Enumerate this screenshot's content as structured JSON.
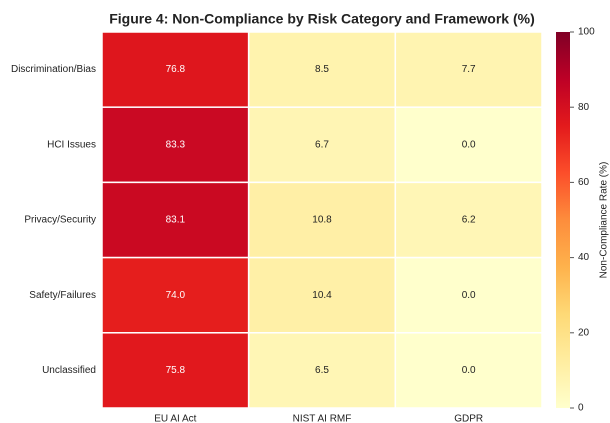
{
  "chart_data": {
    "type": "heatmap",
    "title": "Figure 4: Non-Compliance by Risk Category and Framework (%)",
    "x_categories": [
      "EU AI Act",
      "NIST AI RMF",
      "GDPR"
    ],
    "y_categories": [
      "Discrimination/Bias",
      "HCI Issues",
      "Privacy/Security",
      "Safety/Failures",
      "Unclassified"
    ],
    "values": [
      [
        76.8,
        8.5,
        7.7
      ],
      [
        83.3,
        6.7,
        0
      ],
      [
        83.1,
        10.8,
        6.2
      ],
      [
        74,
        10.4,
        0
      ],
      [
        75.8,
        6.5,
        0
      ]
    ],
    "value_labels": [
      [
        "76.8",
        "8.5",
        "7.7"
      ],
      [
        "83.3",
        "6.7",
        "0.0"
      ],
      [
        "83.1",
        "10.8",
        "6.2"
      ],
      [
        "74.0",
        "10.4",
        "0.0"
      ],
      [
        "75.8",
        "6.5",
        "0.0"
      ]
    ],
    "colormap": [
      "#ffffcc",
      "#ffeda0",
      "#fed976",
      "#feb24c",
      "#fd8d3c",
      "#fc4e2a",
      "#e31a1c",
      "#bd0026",
      "#800026"
    ],
    "clim": [
      0,
      100
    ],
    "cticks": [
      0,
      20,
      40,
      60,
      80,
      100
    ],
    "colorbar_label": "Non-Compliance Rate (%)"
  }
}
